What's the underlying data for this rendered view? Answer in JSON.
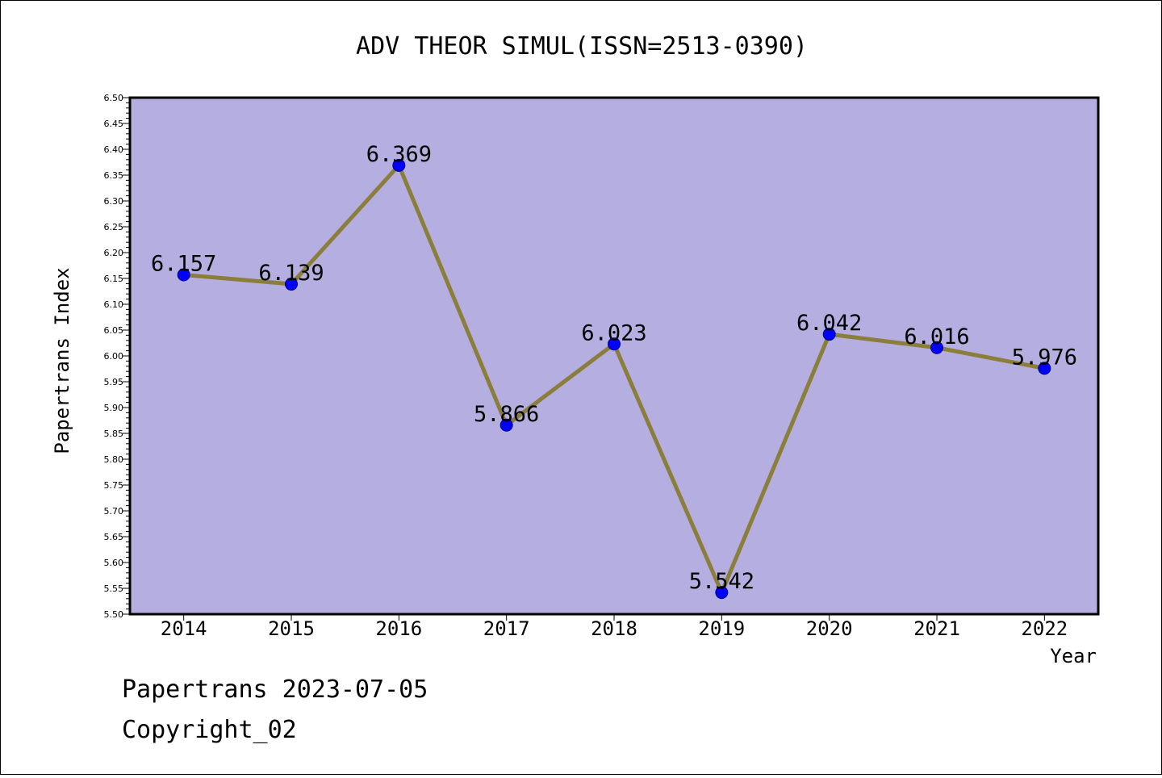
{
  "chart_data": {
    "type": "line",
    "title": "ADV THEOR SIMUL(ISSN=2513-0390)",
    "xlabel": "Year",
    "ylabel": "Papertrans Index",
    "categories": [
      "2014",
      "2015",
      "2016",
      "2017",
      "2018",
      "2019",
      "2020",
      "2021",
      "2022"
    ],
    "values": [
      6.157,
      6.139,
      6.369,
      5.866,
      6.023,
      5.542,
      6.042,
      6.016,
      5.976
    ],
    "data_labels": [
      "6.157",
      "6.139",
      "6.369",
      "5.866",
      "6.023",
      "5.542",
      "6.042",
      "6.016",
      "5.976"
    ],
    "ylim": [
      5.5,
      6.5
    ],
    "yticks": [
      "5.50",
      "5.55",
      "5.60",
      "5.65",
      "5.70",
      "5.75",
      "5.80",
      "5.85",
      "5.90",
      "5.95",
      "6.00",
      "6.05",
      "6.10",
      "6.15",
      "6.20",
      "6.25",
      "6.30",
      "6.35",
      "6.40",
      "6.45",
      "6.50"
    ],
    "grid": false,
    "legend": "none",
    "colors": {
      "plot_background": "#b5aee0",
      "line": "#8b7d3a",
      "marker": "#0000ff",
      "page_background": "#ffffff"
    }
  },
  "footer": {
    "date_line": "Papertrans 2023-07-05",
    "copyright": "Copyright_02"
  }
}
